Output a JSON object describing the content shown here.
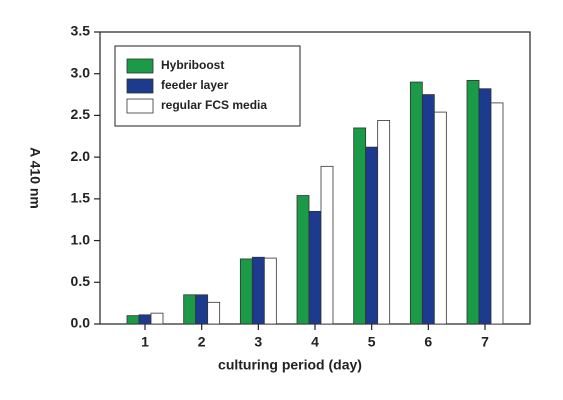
{
  "chart_data": {
    "type": "bar",
    "xlabel": "culturing period (day)",
    "ylabel": "A 410 nm",
    "categories": [
      "1",
      "2",
      "3",
      "4",
      "5",
      "6",
      "7"
    ],
    "series": [
      {
        "name": "Hybriboost",
        "color": "#1b9a48",
        "values": [
          0.1,
          0.35,
          0.78,
          1.54,
          2.35,
          2.9,
          2.92
        ]
      },
      {
        "name": "feeder layer",
        "color": "#1c3a8e",
        "values": [
          0.11,
          0.35,
          0.8,
          1.35,
          2.12,
          2.75,
          2.82
        ]
      },
      {
        "name": "regular FCS media",
        "color": "#ffffff",
        "values": [
          0.13,
          0.26,
          0.79,
          1.89,
          2.44,
          2.54,
          2.65
        ]
      }
    ],
    "ylim": [
      0,
      3.5
    ],
    "yticks": [
      {
        "value": 0,
        "label": "0.0"
      },
      0.5,
      {
        "value": 1,
        "label": "1.0"
      },
      1.5,
      {
        "value": 2,
        "label": "2.0"
      },
      2.5,
      {
        "value": 3,
        "label": "3.0"
      },
      3.5
    ],
    "legend": "upper left"
  }
}
